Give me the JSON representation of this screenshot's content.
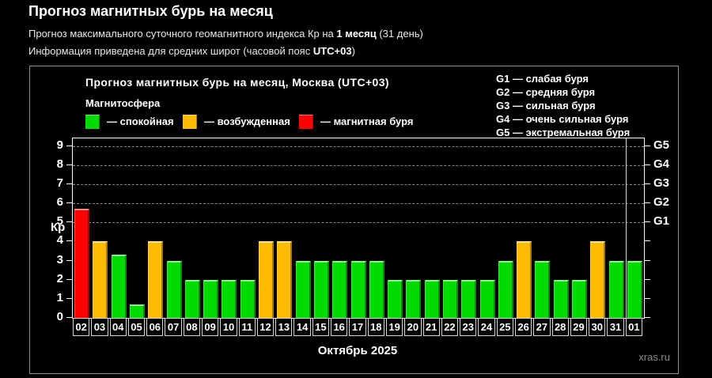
{
  "page": {
    "title": "Прогноз магнитных бурь на месяц",
    "subtitle1": {
      "prefix": "Прогноз максимального суточного геомагнитного индекса Кр на ",
      "bold": "1 месяц",
      "suffix": " (31 день)"
    },
    "subtitle2": {
      "prefix": "Информация приведена для средних широт (часовой пояс ",
      "bold": "UTC+03",
      "suffix": ")"
    },
    "watermark": "xras.ru"
  },
  "chart": {
    "title": "Прогноз магнитных бурь на месяц, Москва (UTC+03)",
    "legend_title": "Магнитосфера",
    "legend": [
      {
        "status": "quiet",
        "label": "— спокойная",
        "color": "#00dc00"
      },
      {
        "status": "unsettled",
        "label": "— возбужденная",
        "color": "#ffbc00"
      },
      {
        "status": "storm",
        "label": "— магнитная буря",
        "color": "#ff0000"
      }
    ],
    "storm_scale": [
      "G1 — слабая буря",
      "G2 — средняя буря",
      "G3 — сильная буря",
      "G4 — очень сильная буря",
      "G5 — экстремальная буря"
    ]
  },
  "chart_data": {
    "type": "bar",
    "title": "Прогноз магнитных бурь на месяц, Москва (UTC+03)",
    "xlabel": "Октябрь 2025",
    "ylabel": "Кр",
    "ylim": [
      0,
      9.4
    ],
    "yticks": [
      0,
      1,
      2,
      3,
      4,
      5,
      6,
      7,
      8,
      9
    ],
    "gridlines_at": [
      5,
      6,
      7,
      8,
      9
    ],
    "right_axis": {
      "values": [
        5,
        6,
        7,
        8,
        9
      ],
      "labels": [
        "G1",
        "G2",
        "G3",
        "G4",
        "G5"
      ]
    },
    "thresholds": {
      "storm_min": 5,
      "unsettled_min": 4
    },
    "month_separator_before_index": 30,
    "categories": [
      "02",
      "03",
      "04",
      "05",
      "06",
      "07",
      "08",
      "09",
      "10",
      "11",
      "12",
      "13",
      "14",
      "15",
      "16",
      "17",
      "18",
      "19",
      "20",
      "21",
      "22",
      "23",
      "24",
      "25",
      "26",
      "27",
      "28",
      "29",
      "30",
      "31",
      "01"
    ],
    "values": [
      5.7,
      4,
      3.3,
      0.7,
      4,
      3,
      2,
      2,
      2,
      2,
      4,
      4,
      3,
      3,
      3,
      3,
      3,
      2,
      2,
      2,
      2,
      2,
      2,
      3,
      4,
      3,
      2,
      2,
      4,
      3,
      3
    ]
  }
}
